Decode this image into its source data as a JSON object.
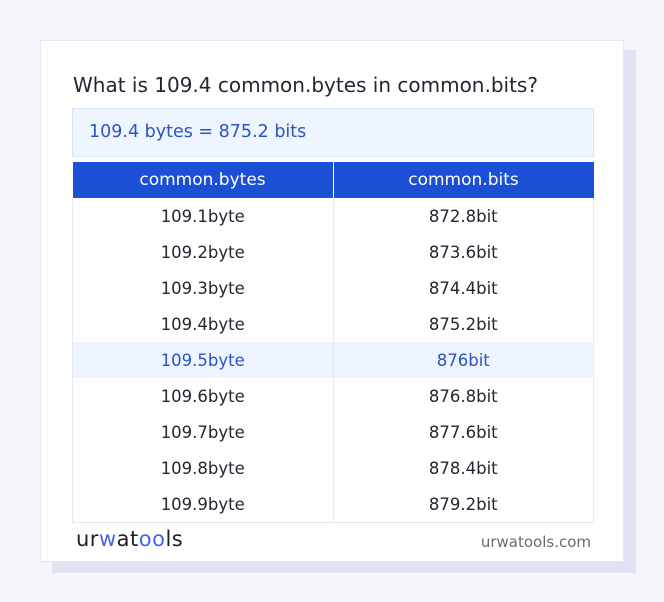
{
  "question": "What is 109.4 common.bytes in common.bits?",
  "result": "109.4 bytes = 875.2 bits",
  "table": {
    "headers": [
      "common.bytes",
      "common.bits"
    ],
    "rows": [
      [
        "109.1byte",
        "872.8bit"
      ],
      [
        "109.2byte",
        "873.6bit"
      ],
      [
        "109.3byte",
        "874.4bit"
      ],
      [
        "109.4byte",
        "875.2bit"
      ],
      [
        "109.5byte",
        "876bit"
      ],
      [
        "109.6byte",
        "876.8bit"
      ],
      [
        "109.7byte",
        "877.6bit"
      ],
      [
        "109.8byte",
        "878.4bit"
      ],
      [
        "109.9byte",
        "879.2bit"
      ]
    ],
    "highlighted_row": 4
  },
  "footer": {
    "logo": "urwatools",
    "logo_parts": [
      "ur",
      "w",
      "at",
      "oo",
      "ls"
    ],
    "site": "urwatools.com"
  },
  "colors": {
    "accent": "#1a4fd6",
    "result_text": "#2a55c0",
    "highlight_bg": "#eef5fe"
  }
}
